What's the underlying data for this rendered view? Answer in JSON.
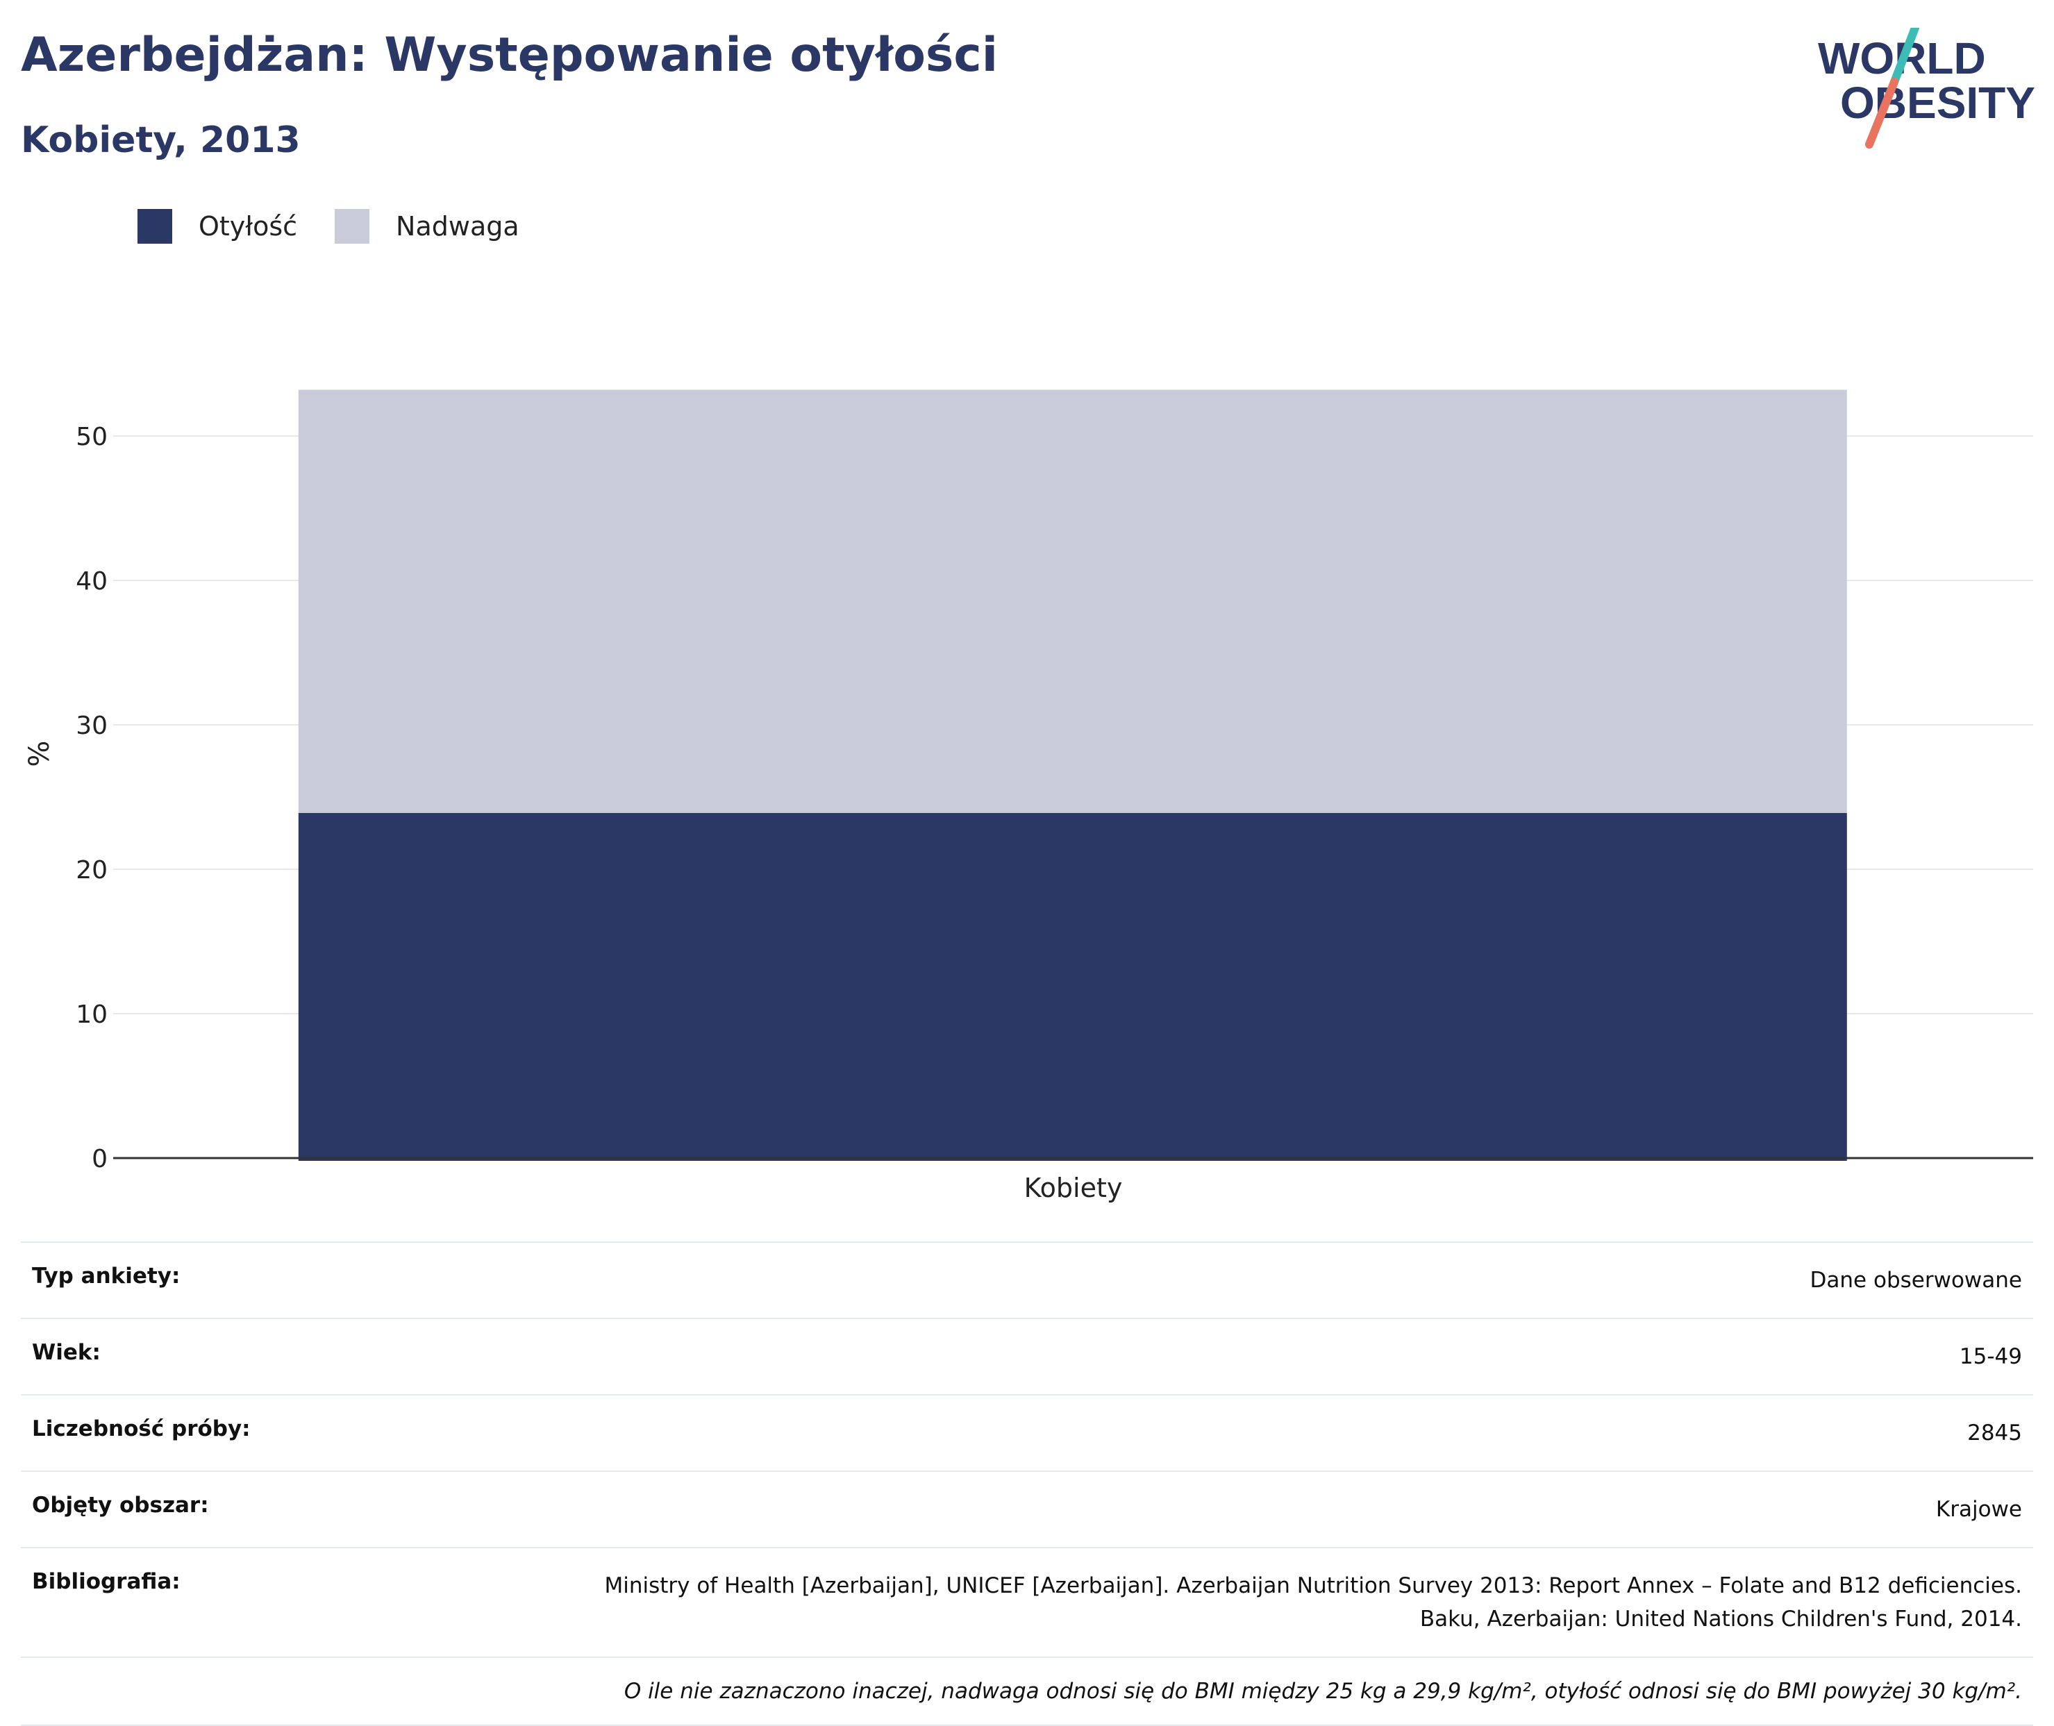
{
  "header": {
    "title": "Azerbejdżan: Występowanie otyłości",
    "subtitle": "Kobiety, 2013"
  },
  "logo": {
    "line1": "WORLD",
    "line2": "OBESITY",
    "colors": {
      "text": "#2b3764",
      "slash_top": "#3cbcb4",
      "slash_bottom": "#e8735f"
    }
  },
  "legend": [
    {
      "label": "Otyłość",
      "color": "#2b3764"
    },
    {
      "label": "Nadwaga",
      "color": "#c9ccd8"
    }
  ],
  "chart_data": {
    "type": "bar",
    "stacked": true,
    "categories": [
      "Kobiety"
    ],
    "series": [
      {
        "name": "Otyłość",
        "values": [
          23.9
        ],
        "color": "#2b3764"
      },
      {
        "name": "Nadwaga",
        "values": [
          29.3
        ],
        "color": "#c9ccd8"
      }
    ],
    "ylabel": "%",
    "ylim": [
      0,
      56
    ],
    "yticks": [
      0,
      10,
      20,
      30,
      40,
      50
    ],
    "grid": true,
    "legend_position": "top-left"
  },
  "info": {
    "survey_type": {
      "key": "Typ ankiety:",
      "value": "Dane obserwowane"
    },
    "age": {
      "key": "Wiek:",
      "value": "15-49"
    },
    "sample_size": {
      "key": "Liczebność próby:",
      "value": "2845"
    },
    "area": {
      "key": "Objęty obszar:",
      "value": "Krajowe"
    },
    "bibliography": {
      "key": "Bibliografia:",
      "line1": "Ministry of Health [Azerbaijan], UNICEF [Azerbaijan]. Azerbaijan Nutrition Survey 2013: Report Annex – Folate and B12 deficiencies.",
      "line2": "Baku, Azerbaijan: United Nations Children's Fund, 2014."
    },
    "note": "O ile nie zaznaczono inaczej, nadwaga odnosi się do BMI między 25 kg a 29,9 kg/m², otyłość odnosi się do BMI powyżej 30 kg/m²."
  }
}
